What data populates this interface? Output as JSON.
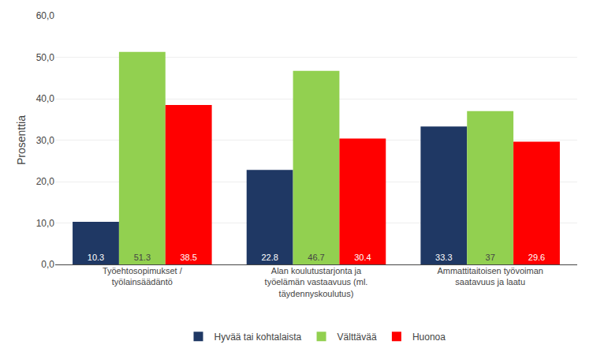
{
  "chart_data": {
    "type": "bar",
    "categories": [
      "Työehtosopimukset /\ntyölainsäädäntö",
      "Alan koulutustarjonta ja\ntyöelämän vastaavuus (ml.\ntäydennyskoulutus)",
      "Ammattitaitoisen työvoiman\nsaatavuus ja laatu"
    ],
    "series": [
      {
        "name": "Hyvää tai kohtalaista",
        "color": "#1F3864",
        "values": [
          10.3,
          22.8,
          33.3
        ]
      },
      {
        "name": "Välttävää",
        "color": "#92D050",
        "values": [
          51.3,
          46.7,
          37.0
        ]
      },
      {
        "name": "Huonoa",
        "color": "#FF0000",
        "values": [
          38.5,
          30.4,
          29.6
        ]
      }
    ],
    "ylabel": "Prosenttia",
    "ylim": [
      0,
      60
    ],
    "yticks": [
      {
        "value": 0,
        "label": "0,0"
      },
      {
        "value": 10,
        "label": "10,0"
      },
      {
        "value": 20,
        "label": "20,0"
      },
      {
        "value": 30,
        "label": "30,0"
      },
      {
        "value": 40,
        "label": "40,0"
      },
      {
        "value": 50,
        "label": "50,0"
      },
      {
        "value": 60,
        "label": "60,0"
      }
    ],
    "grid": true,
    "legend": "bottom",
    "data_labels": true
  }
}
